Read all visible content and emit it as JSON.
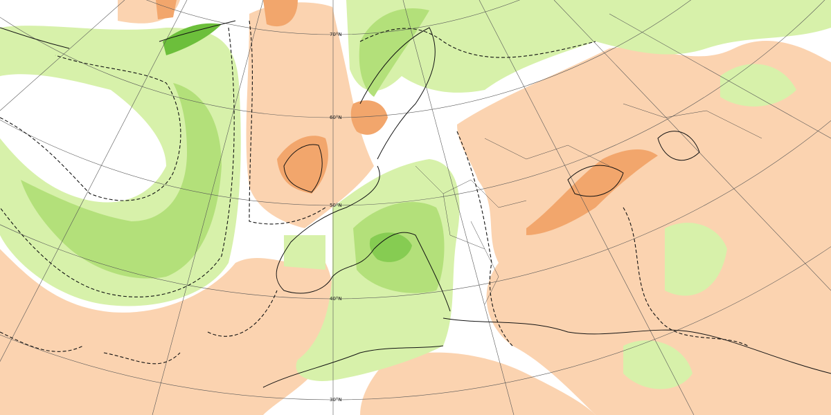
{
  "map": {
    "latitude_labels": [
      "70°N",
      "60°N",
      "50°N",
      "40°N",
      "30°N"
    ]
  }
}
